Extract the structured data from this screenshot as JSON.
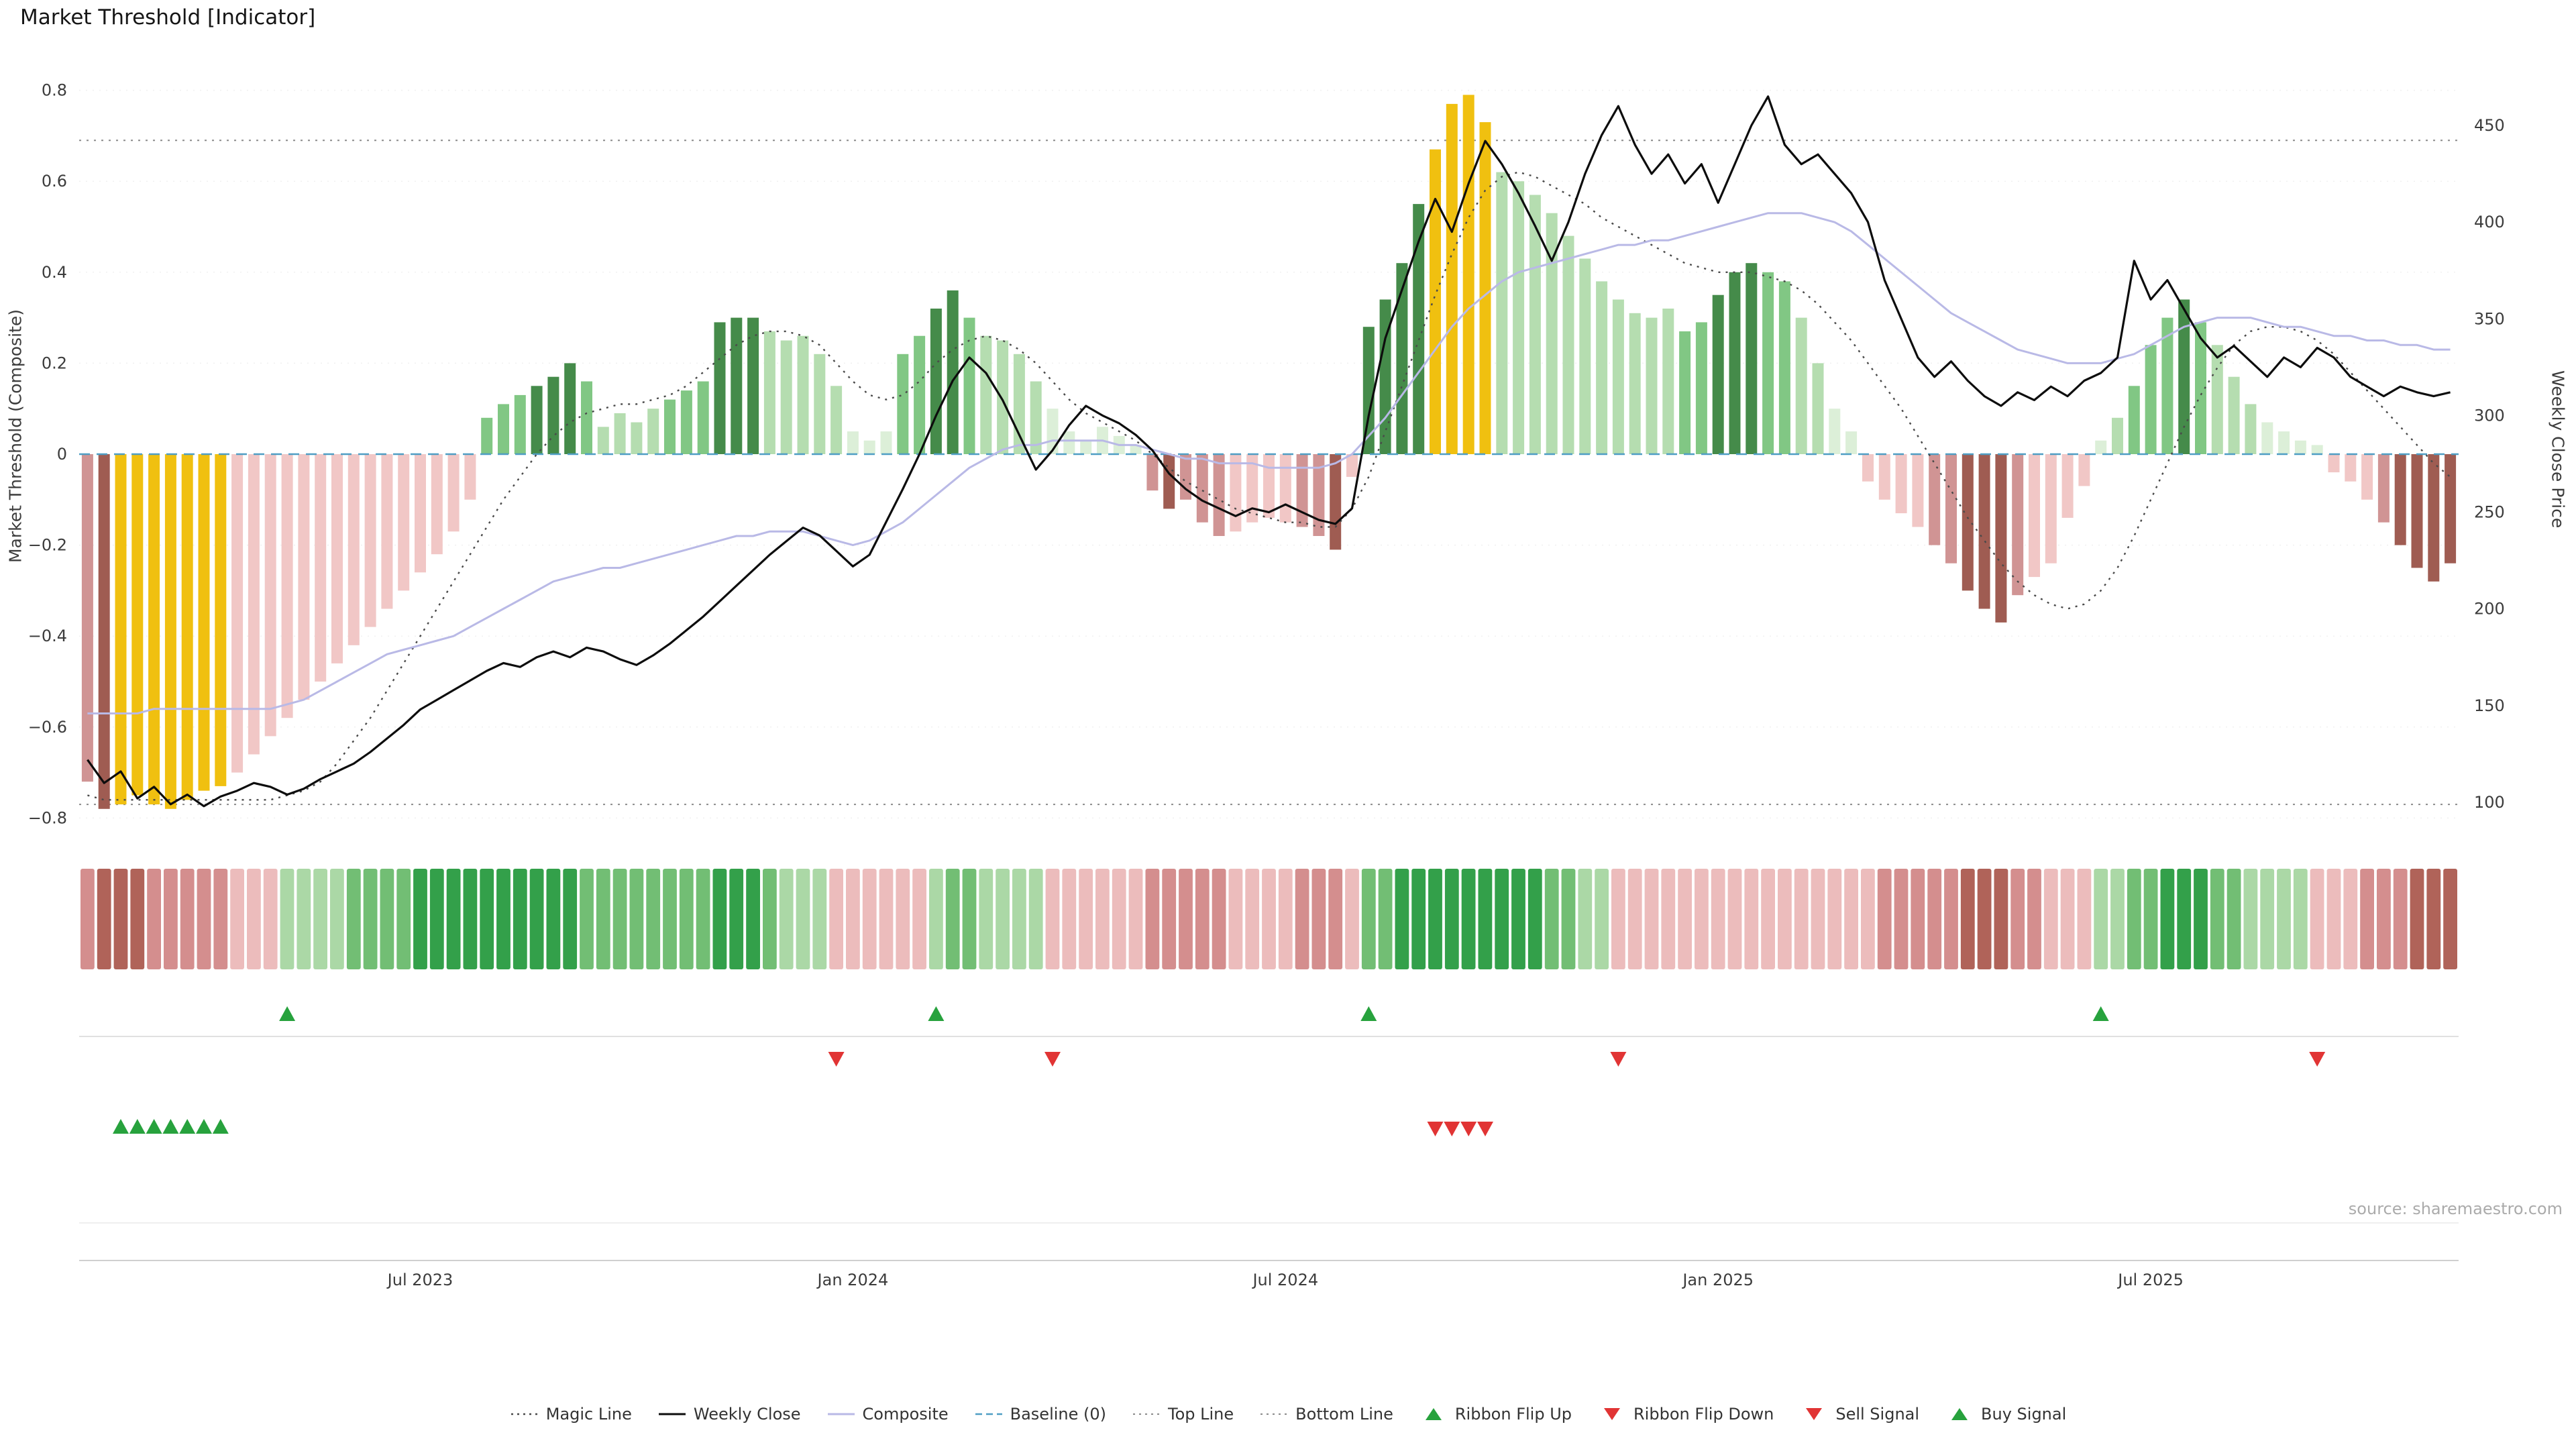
{
  "title": "Market Threshold [Indicator]",
  "source": "source: sharemaestro.com",
  "axes": {
    "left_label": "Market Threshold (Composite)",
    "right_label": "Weekly Close Price",
    "left_ticks": [
      {
        "label": "0.8",
        "value": 0.8
      },
      {
        "label": "0.6",
        "value": 0.6
      },
      {
        "label": "0.4",
        "value": 0.4
      },
      {
        "label": "0.2",
        "value": 0.2
      },
      {
        "label": "0",
        "value": 0
      },
      {
        "label": "−0.2",
        "value": -0.2
      },
      {
        "label": "−0.4",
        "value": -0.4
      },
      {
        "label": "−0.6",
        "value": -0.6
      },
      {
        "label": "−0.8",
        "value": -0.8
      }
    ],
    "right_ticks": [
      {
        "label": "450",
        "value": 450
      },
      {
        "label": "400",
        "value": 400
      },
      {
        "label": "350",
        "value": 350
      },
      {
        "label": "300",
        "value": 300
      },
      {
        "label": "250",
        "value": 250
      },
      {
        "label": "200",
        "value": 200
      },
      {
        "label": "150",
        "value": 150
      },
      {
        "label": "100",
        "value": 100
      }
    ],
    "x_ticks": [
      {
        "label": "Jul 2023",
        "week": 20
      },
      {
        "label": "Jan 2024",
        "week": 46
      },
      {
        "label": "Jul 2024",
        "week": 72
      },
      {
        "label": "Jan 2025",
        "week": 98
      },
      {
        "label": "Jul 2025",
        "week": 124
      }
    ]
  },
  "legend": [
    {
      "label": "Magic Line",
      "swatch": "dotted-dark"
    },
    {
      "label": "Weekly Close",
      "swatch": "solid-black"
    },
    {
      "label": "Composite",
      "swatch": "solid-lavender"
    },
    {
      "label": "Baseline (0)",
      "swatch": "dashed-teal"
    },
    {
      "label": "Top Line",
      "swatch": "dotted-gray"
    },
    {
      "label": "Bottom Line",
      "swatch": "dotted-gray"
    },
    {
      "label": "Ribbon Flip Up",
      "swatch": "tri-up"
    },
    {
      "label": "Ribbon Flip Down",
      "swatch": "tri-down"
    },
    {
      "label": "Sell Signal",
      "swatch": "tri-down"
    },
    {
      "label": "Buy Signal",
      "swatch": "tri-up"
    }
  ],
  "colors": {
    "gold": "#f0c010",
    "bar_r1": "#f1c7c6",
    "bar_r2": "#d09494",
    "bar_r3": "#9f5c52",
    "bar_g0": "#dcefd8",
    "bar_g1": "#b5ddb0",
    "bar_g2": "#81c784",
    "bar_g3": "#458b4a",
    "ribbon_r1": "#ecbcbc",
    "ribbon_r2": "#d48e8e",
    "ribbon_r3": "#b06359",
    "ribbon_g0": "#d5ebd1",
    "ribbon_g1": "#abd8a6",
    "ribbon_g2": "#72be74",
    "ribbon_g3": "#33a04a",
    "weekly_close": "#0d0d0d",
    "composite": "#b9b9e6",
    "magic_line": "#4a4a4a",
    "baseline": "#4f9ec4",
    "guide": "#8a8a8a",
    "grid": "#f0f0f0",
    "signal_green": "#27a23d",
    "signal_red": "#e13434",
    "axis_text": "#3c3c3c"
  },
  "chart_data": {
    "type": "bar",
    "title": "Market Threshold [Indicator]",
    "x_unit": "week",
    "n_points": 143,
    "left_ylim": [
      -0.8,
      0.8
    ],
    "right_ylim": [
      100,
      450
    ],
    "top_line": 0.69,
    "bottom_line": -0.77,
    "baseline": 0,
    "threshold_bars": [
      -0.72,
      -0.78,
      -0.77,
      -0.75,
      -0.77,
      -0.78,
      -0.76,
      -0.74,
      -0.73,
      -0.7,
      -0.66,
      -0.62,
      -0.58,
      -0.54,
      -0.5,
      -0.46,
      -0.42,
      -0.38,
      -0.34,
      -0.3,
      -0.26,
      -0.22,
      -0.17,
      -0.1,
      0.08,
      0.11,
      0.13,
      0.15,
      0.17,
      0.2,
      0.16,
      0.06,
      0.09,
      0.07,
      0.1,
      0.12,
      0.14,
      0.16,
      0.29,
      0.3,
      0.3,
      0.27,
      0.25,
      0.26,
      0.22,
      0.15,
      0.05,
      0.03,
      0.05,
      0.22,
      0.26,
      0.32,
      0.36,
      0.3,
      0.26,
      0.25,
      0.22,
      0.16,
      0.1,
      0.05,
      0.03,
      0.06,
      0.04,
      0.02,
      -0.08,
      -0.12,
      -0.1,
      -0.15,
      -0.18,
      -0.17,
      -0.15,
      -0.14,
      -0.15,
      -0.16,
      -0.18,
      -0.21,
      -0.05,
      0.28,
      0.34,
      0.42,
      0.55,
      0.67,
      0.77,
      0.79,
      0.73,
      0.62,
      0.6,
      0.57,
      0.53,
      0.48,
      0.43,
      0.38,
      0.34,
      0.31,
      0.3,
      0.32,
      0.27,
      0.29,
      0.35,
      0.4,
      0.42,
      0.4,
      0.38,
      0.3,
      0.2,
      0.1,
      0.05,
      -0.06,
      -0.1,
      -0.13,
      -0.16,
      -0.2,
      -0.24,
      -0.3,
      -0.34,
      -0.37,
      -0.31,
      -0.27,
      -0.24,
      -0.14,
      -0.07,
      0.03,
      0.08,
      0.15,
      0.24,
      0.3,
      0.34,
      0.29,
      0.24,
      0.17,
      0.11,
      0.07,
      0.05,
      0.03,
      0.02,
      -0.04,
      -0.06,
      -0.1,
      -0.15,
      -0.2,
      -0.25,
      -0.28,
      -0.24
    ],
    "bar_shades": [
      "r2",
      "r3",
      "gold",
      "gold",
      "gold",
      "gold",
      "gold",
      "gold",
      "gold",
      "r1",
      "r1",
      "r1",
      "r1",
      "r1",
      "r1",
      "r1",
      "r1",
      "r1",
      "r1",
      "r1",
      "r1",
      "r1",
      "r1",
      "r1",
      "g2",
      "g2",
      "g2",
      "g3",
      "g3",
      "g3",
      "g2",
      "g1",
      "g1",
      "g1",
      "g1",
      "g2",
      "g2",
      "g2",
      "g3",
      "g3",
      "g3",
      "g1",
      "g1",
      "g1",
      "g1",
      "g1",
      "g0",
      "g0",
      "g0",
      "g2",
      "g2",
      "g3",
      "g3",
      "g2",
      "g1",
      "g1",
      "g1",
      "g1",
      "g0",
      "g0",
      "g0",
      "g0",
      "g0",
      "g0",
      "r2",
      "r3",
      "r2",
      "r2",
      "r2",
      "r1",
      "r1",
      "r1",
      "r1",
      "r2",
      "r2",
      "r3",
      "r1",
      "g3",
      "g3",
      "g3",
      "g3",
      "gold",
      "gold",
      "gold",
      "gold",
      "g1",
      "g1",
      "g1",
      "g1",
      "g1",
      "g1",
      "g1",
      "g1",
      "g1",
      "g1",
      "g1",
      "g2",
      "g2",
      "g3",
      "g3",
      "g3",
      "g2",
      "g2",
      "g1",
      "g1",
      "g0",
      "g0",
      "r1",
      "r1",
      "r1",
      "r1",
      "r2",
      "r2",
      "r3",
      "r3",
      "r3",
      "r2",
      "r1",
      "r1",
      "r1",
      "r1",
      "g0",
      "g1",
      "g2",
      "g2",
      "g2",
      "g3",
      "g2",
      "g1",
      "g1",
      "g1",
      "g0",
      "g0",
      "g0",
      "g0",
      "r1",
      "r1",
      "r1",
      "r2",
      "r3",
      "r3",
      "r3",
      "r3"
    ],
    "ribbon_shades": [
      "r2",
      "r3",
      "r3",
      "r3",
      "r2",
      "r2",
      "r2",
      "r2",
      "r2",
      "r1",
      "r1",
      "r1",
      "g1",
      "g1",
      "g1",
      "g1",
      "g2",
      "g2",
      "g2",
      "g2",
      "g3",
      "g3",
      "g3",
      "g3",
      "g3",
      "g3",
      "g3",
      "g3",
      "g3",
      "g3",
      "g2",
      "g2",
      "g2",
      "g2",
      "g2",
      "g2",
      "g2",
      "g2",
      "g3",
      "g3",
      "g3",
      "g2",
      "g1",
      "g1",
      "g1",
      "r1",
      "r1",
      "r1",
      "r1",
      "r1",
      "r1",
      "g1",
      "g2",
      "g2",
      "g1",
      "g1",
      "g1",
      "g1",
      "r1",
      "r1",
      "r1",
      "r1",
      "r1",
      "r1",
      "r2",
      "r2",
      "r2",
      "r2",
      "r2",
      "r1",
      "r1",
      "r1",
      "r1",
      "r2",
      "r2",
      "r2",
      "r1",
      "g2",
      "g2",
      "g3",
      "g3",
      "g3",
      "g3",
      "g3",
      "g3",
      "g3",
      "g3",
      "g3",
      "g2",
      "g2",
      "g1",
      "g1",
      "r1",
      "r1",
      "r1",
      "r1",
      "r1",
      "r1",
      "r1",
      "r1",
      "r1",
      "r1",
      "r1",
      "r1",
      "r1",
      "r1",
      "r1",
      "r1",
      "r2",
      "r2",
      "r2",
      "r2",
      "r2",
      "r3",
      "r3",
      "r3",
      "r2",
      "r2",
      "r1",
      "r1",
      "r1",
      "g1",
      "g1",
      "g2",
      "g2",
      "g3",
      "g3",
      "g3",
      "g2",
      "g2",
      "g1",
      "g1",
      "g1",
      "g1",
      "r1",
      "r1",
      "r1",
      "r2",
      "r2",
      "r2",
      "r3",
      "r3",
      "r3"
    ],
    "weekly_close": [
      122,
      110,
      116,
      102,
      108,
      99,
      104,
      98,
      103,
      106,
      110,
      108,
      104,
      107,
      112,
      116,
      120,
      126,
      133,
      140,
      148,
      153,
      158,
      163,
      168,
      172,
      170,
      175,
      178,
      175,
      180,
      178,
      174,
      171,
      176,
      182,
      189,
      196,
      204,
      212,
      220,
      228,
      235,
      242,
      238,
      230,
      222,
      228,
      245,
      262,
      280,
      300,
      318,
      330,
      322,
      308,
      290,
      272,
      282,
      295,
      305,
      300,
      296,
      290,
      282,
      270,
      262,
      256,
      252,
      248,
      252,
      250,
      254,
      250,
      246,
      244,
      252,
      300,
      340,
      365,
      390,
      412,
      395,
      420,
      442,
      430,
      415,
      398,
      380,
      400,
      425,
      445,
      460,
      440,
      425,
      435,
      420,
      430,
      410,
      430,
      450,
      465,
      440,
      430,
      435,
      425,
      415,
      400,
      370,
      350,
      330,
      320,
      328,
      318,
      310,
      305,
      312,
      308,
      315,
      310,
      318,
      322,
      330,
      380,
      360,
      370,
      355,
      340,
      330,
      336,
      328,
      320,
      330,
      325,
      335,
      330,
      320,
      315,
      310,
      315,
      312,
      310,
      312
    ],
    "composite": [
      -0.57,
      -0.57,
      -0.57,
      -0.57,
      -0.56,
      -0.56,
      -0.56,
      -0.56,
      -0.56,
      -0.56,
      -0.56,
      -0.56,
      -0.55,
      -0.54,
      -0.52,
      -0.5,
      -0.48,
      -0.46,
      -0.44,
      -0.43,
      -0.42,
      -0.41,
      -0.4,
      -0.38,
      -0.36,
      -0.34,
      -0.32,
      -0.3,
      -0.28,
      -0.27,
      -0.26,
      -0.25,
      -0.25,
      -0.24,
      -0.23,
      -0.22,
      -0.21,
      -0.2,
      -0.19,
      -0.18,
      -0.18,
      -0.17,
      -0.17,
      -0.17,
      -0.18,
      -0.19,
      -0.2,
      -0.19,
      -0.17,
      -0.15,
      -0.12,
      -0.09,
      -0.06,
      -0.03,
      -0.01,
      0.01,
      0.02,
      0.02,
      0.03,
      0.03,
      0.03,
      0.03,
      0.02,
      0.02,
      0.01,
      0.0,
      -0.01,
      -0.01,
      -0.02,
      -0.02,
      -0.02,
      -0.03,
      -0.03,
      -0.03,
      -0.03,
      -0.02,
      0.0,
      0.04,
      0.08,
      0.13,
      0.18,
      0.23,
      0.28,
      0.32,
      0.35,
      0.38,
      0.4,
      0.41,
      0.42,
      0.43,
      0.44,
      0.45,
      0.46,
      0.46,
      0.47,
      0.47,
      0.48,
      0.49,
      0.5,
      0.51,
      0.52,
      0.53,
      0.53,
      0.53,
      0.52,
      0.51,
      0.49,
      0.46,
      0.43,
      0.4,
      0.37,
      0.34,
      0.31,
      0.29,
      0.27,
      0.25,
      0.23,
      0.22,
      0.21,
      0.2,
      0.2,
      0.2,
      0.21,
      0.22,
      0.24,
      0.26,
      0.28,
      0.29,
      0.3,
      0.3,
      0.3,
      0.29,
      0.28,
      0.28,
      0.27,
      0.26,
      0.26,
      0.25,
      0.25,
      0.24,
      0.24,
      0.23,
      0.23
    ],
    "magic_line": [
      -0.75,
      -0.76,
      -0.76,
      -0.76,
      -0.76,
      -0.76,
      -0.76,
      -0.76,
      -0.76,
      -0.76,
      -0.76,
      -0.76,
      -0.75,
      -0.74,
      -0.72,
      -0.68,
      -0.63,
      -0.58,
      -0.52,
      -0.46,
      -0.4,
      -0.34,
      -0.28,
      -0.22,
      -0.16,
      -0.1,
      -0.05,
      0.0,
      0.04,
      0.07,
      0.09,
      0.1,
      0.11,
      0.11,
      0.12,
      0.13,
      0.15,
      0.18,
      0.21,
      0.24,
      0.26,
      0.27,
      0.27,
      0.26,
      0.24,
      0.2,
      0.16,
      0.13,
      0.12,
      0.13,
      0.16,
      0.2,
      0.23,
      0.25,
      0.26,
      0.25,
      0.23,
      0.2,
      0.16,
      0.12,
      0.09,
      0.07,
      0.05,
      0.03,
      0.0,
      -0.03,
      -0.06,
      -0.08,
      -0.1,
      -0.12,
      -0.13,
      -0.14,
      -0.15,
      -0.15,
      -0.16,
      -0.16,
      -0.12,
      -0.05,
      0.05,
      0.15,
      0.25,
      0.35,
      0.44,
      0.52,
      0.58,
      0.61,
      0.62,
      0.61,
      0.59,
      0.57,
      0.55,
      0.52,
      0.5,
      0.48,
      0.46,
      0.44,
      0.42,
      0.41,
      0.4,
      0.4,
      0.4,
      0.39,
      0.38,
      0.36,
      0.33,
      0.29,
      0.25,
      0.2,
      0.15,
      0.1,
      0.04,
      -0.02,
      -0.08,
      -0.14,
      -0.19,
      -0.24,
      -0.28,
      -0.31,
      -0.33,
      -0.34,
      -0.33,
      -0.3,
      -0.25,
      -0.18,
      -0.1,
      -0.02,
      0.06,
      0.13,
      0.19,
      0.24,
      0.27,
      0.28,
      0.28,
      0.27,
      0.25,
      0.22,
      0.18,
      0.14,
      0.1,
      0.06,
      0.02,
      -0.02,
      -0.05
    ],
    "signals": {
      "ribbon_flip_up_weeks": [
        12,
        51,
        77,
        121
      ],
      "ribbon_flip_down_weeks": [
        45,
        58,
        92,
        134
      ],
      "buy_signal_weeks": [
        2,
        3,
        4,
        5,
        6,
        7,
        8
      ],
      "sell_signal_weeks": [
        81,
        82,
        83,
        84
      ]
    }
  }
}
